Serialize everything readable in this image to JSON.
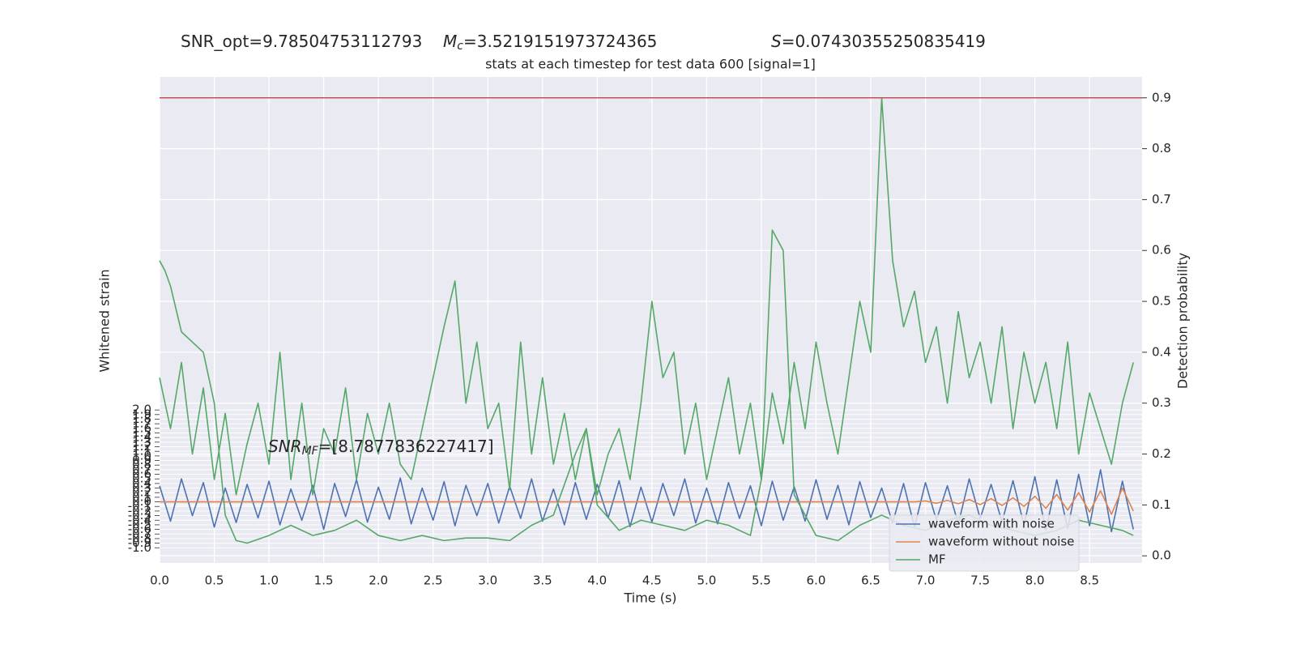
{
  "chart_data": {
    "type": "line",
    "title_parts": [
      {
        "text": "SNR_opt=9.78504753112793"
      },
      {
        "symbol": "M",
        "subscript": "c",
        "text": "=3.5219151973724365"
      },
      {
        "symbol": "S",
        "text": "=0.07430355250835419"
      }
    ],
    "subtitle": "stats at each timestep for test data 600 [signal=1]",
    "annotation": {
      "symbol": "SNR",
      "subscript": "MF",
      "text": "=[8.7877836227417]"
    },
    "xlabel": "Time (s)",
    "ylabel": "Whitened strain",
    "y2label": "Detection probability",
    "grid": true,
    "legend": "lower right",
    "xlim": [
      0,
      8.98
    ],
    "xticks": [
      {
        "value": 0,
        "label": "0.0"
      },
      0.5,
      {
        "value": 1,
        "label": "1.0"
      },
      1.5,
      {
        "value": 2,
        "label": "2.0"
      },
      2.5,
      {
        "value": 3,
        "label": "3.0"
      },
      3.5,
      {
        "value": 4,
        "label": "4.0"
      },
      4.5,
      {
        "value": 5,
        "label": "5.0"
      },
      5.5,
      {
        "value": 6,
        "label": "6.0"
      },
      6.5,
      {
        "value": 7,
        "label": "7.0"
      },
      7.5,
      {
        "value": 8,
        "label": "8.0"
      },
      8.5
    ],
    "ylim": [
      -1.33,
      9.25
    ],
    "yticks": [
      {
        "value": -1,
        "label": "-1.0"
      },
      -0.9,
      -0.8,
      -0.7,
      -0.6,
      -0.5,
      -0.4,
      -0.3,
      -0.2,
      -0.1,
      {
        "value": 0,
        "label": "0.0"
      },
      0.1,
      0.2,
      0.3,
      0.4,
      0.5,
      0.6,
      0.7,
      0.8,
      0.9,
      {
        "value": 1,
        "label": "1.0"
      },
      1.1,
      1.2,
      1.3,
      1.4,
      1.5,
      1.6,
      1.7,
      1.8,
      1.9,
      {
        "value": 2,
        "label": "2.0"
      }
    ],
    "y2lim": [
      -0.014,
      0.941
    ],
    "y2ticks": [
      {
        "value": 0,
        "label": "0.0"
      },
      0.1,
      0.2,
      0.3,
      0.4,
      0.5,
      0.6,
      0.7,
      0.8,
      0.9
    ],
    "hline": {
      "value": 0.9,
      "axis": "y2",
      "color": "#c44e52"
    },
    "x": [
      0,
      0.1,
      0.2,
      0.3,
      0.4,
      0.5,
      0.6,
      0.7,
      0.8,
      0.9,
      1,
      1.1,
      1.2,
      1.3,
      1.4,
      1.5,
      1.6,
      1.7,
      1.8,
      1.9,
      2,
      2.1,
      2.2,
      2.3,
      2.4,
      2.5,
      2.6,
      2.7,
      2.8,
      2.9,
      3,
      3.1,
      3.2,
      3.3,
      3.4,
      3.5,
      3.6,
      3.7,
      3.8,
      3.9,
      4,
      4.1,
      4.2,
      4.3,
      4.4,
      4.5,
      4.6,
      4.7,
      4.8,
      4.9,
      5,
      5.1,
      5.2,
      5.3,
      5.4,
      5.5,
      5.6,
      5.7,
      5.8,
      5.9,
      6,
      6.1,
      6.2,
      6.3,
      6.4,
      6.5,
      6.6,
      6.7,
      6.8,
      6.9,
      7,
      7.1,
      7.2,
      7.3,
      7.4,
      7.5,
      7.6,
      7.7,
      7.8,
      7.9,
      8,
      8.1,
      8.2,
      8.3,
      8.4,
      8.5,
      8.6,
      8.7,
      8.8,
      8.9
    ],
    "series": [
      {
        "name": "waveform with noise",
        "color": "#4c72b0",
        "axis": "y",
        "values": [
          0.35,
          -0.42,
          0.5,
          -0.3,
          0.42,
          -0.55,
          0.3,
          -0.45,
          0.38,
          -0.35,
          0.45,
          -0.5,
          0.28,
          -0.4,
          0.36,
          -0.6,
          0.4,
          -0.32,
          0.48,
          -0.44,
          0.32,
          -0.38,
          0.52,
          -0.48,
          0.3,
          -0.4,
          0.44,
          -0.52,
          0.36,
          -0.3,
          0.4,
          -0.46,
          0.34,
          -0.36,
          0.5,
          -0.42,
          0.28,
          -0.5,
          0.42,
          -0.38,
          0.38,
          -0.35,
          0.46,
          -0.54,
          0.32,
          -0.44,
          0.4,
          -0.3,
          0.5,
          -0.46,
          0.3,
          -0.48,
          0.42,
          -0.36,
          0.35,
          -0.52,
          0.45,
          -0.4,
          0.33,
          -0.42,
          0.48,
          -0.38,
          0.36,
          -0.5,
          0.44,
          -0.34,
          0.3,
          -0.46,
          0.4,
          -0.55,
          0.42,
          -0.4,
          0.35,
          -0.48,
          0.5,
          -0.36,
          0.38,
          -0.44,
          0.46,
          -0.5,
          0.55,
          -0.62,
          0.48,
          -0.58,
          0.6,
          -0.52,
          0.7,
          -0.65,
          0.45,
          -0.6
        ]
      },
      {
        "name": "waveform without noise",
        "color": "#dd8452",
        "axis": "y",
        "values": [
          0,
          0,
          0,
          0,
          0,
          0,
          0,
          0,
          0,
          0,
          0,
          0,
          0,
          0,
          0,
          0,
          0,
          0,
          0,
          0,
          0,
          0,
          0,
          0,
          0,
          0,
          0,
          0,
          0,
          0,
          0,
          0,
          0,
          0,
          0,
          0,
          0,
          0,
          0,
          0,
          0,
          0,
          0,
          0,
          0,
          0,
          0,
          0,
          0,
          0,
          0,
          0,
          0,
          0,
          0,
          0,
          0,
          0,
          0,
          0,
          0,
          0,
          0,
          0,
          0,
          0,
          0,
          0,
          0,
          0,
          0.02,
          -0.03,
          0.03,
          -0.04,
          0.05,
          -0.06,
          0.07,
          -0.08,
          0.09,
          -0.1,
          0.12,
          -0.14,
          0.16,
          -0.18,
          0.2,
          -0.22,
          0.24,
          -0.27,
          0.3,
          -0.2
        ]
      },
      {
        "color": "#55a868",
        "axis": "y2",
        "values": [
          0.35,
          0.25,
          0.38,
          0.2,
          0.33,
          0.15,
          0.28,
          0.12,
          0.22,
          0.3,
          0.18,
          0.4,
          0.15,
          0.3,
          0.12,
          0.25,
          0.2,
          0.33,
          0.15,
          0.28,
          0.2,
          0.3,
          0.18,
          0.15,
          0.25,
          0.35,
          0.45,
          0.54,
          0.3,
          0.42,
          0.25,
          0.3,
          0.13,
          0.42,
          0.2,
          0.35,
          0.18,
          0.28,
          0.15,
          0.25,
          0.12,
          0.2,
          0.25,
          0.15,
          0.3,
          0.5,
          0.35,
          0.4,
          0.2,
          0.3,
          0.15,
          0.25,
          0.35,
          0.2,
          0.3,
          0.15,
          0.32,
          0.22,
          0.38,
          0.25,
          0.42,
          0.3,
          0.2,
          0.35,
          0.5,
          0.4,
          0.9,
          0.58,
          0.45,
          0.52,
          0.38,
          0.45,
          0.3,
          0.48,
          0.35,
          0.42,
          0.3,
          0.45,
          0.25,
          0.4,
          0.3,
          0.38,
          0.25,
          0.42,
          0.2,
          0.32,
          0.25,
          0.18,
          0.3,
          0.38
        ]
      },
      {
        "name": "MF",
        "color": "#55a868",
        "axis": "y2",
        "x": [
          0,
          0.05,
          0.1,
          0.2,
          0.3,
          0.4,
          0.5,
          0.6,
          0.7,
          0.8,
          1,
          1.2,
          1.4,
          1.6,
          1.8,
          2,
          2.2,
          2.4,
          2.6,
          2.8,
          3,
          3.2,
          3.4,
          3.6,
          3.8,
          3.9,
          4,
          4.2,
          4.4,
          4.6,
          4.8,
          5,
          5.2,
          5.4,
          5.5,
          5.6,
          5.7,
          5.8,
          6,
          6.2,
          6.4,
          6.6,
          6.8,
          7,
          7.2,
          7.4,
          7.6,
          7.8,
          8,
          8.2,
          8.4,
          8.6,
          8.8,
          8.9
        ],
        "values": [
          0.58,
          0.56,
          0.53,
          0.44,
          0.42,
          0.4,
          0.3,
          0.08,
          0.03,
          0.025,
          0.04,
          0.06,
          0.04,
          0.05,
          0.07,
          0.04,
          0.03,
          0.04,
          0.03,
          0.035,
          0.035,
          0.03,
          0.06,
          0.08,
          0.2,
          0.25,
          0.1,
          0.05,
          0.07,
          0.06,
          0.05,
          0.07,
          0.06,
          0.04,
          0.15,
          0.64,
          0.6,
          0.12,
          0.04,
          0.03,
          0.06,
          0.08,
          0.06,
          0.05,
          0.07,
          0.08,
          0.06,
          0.05,
          0.04,
          0.05,
          0.07,
          0.06,
          0.05,
          0.04
        ]
      }
    ]
  }
}
